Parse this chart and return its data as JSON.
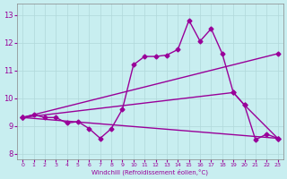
{
  "xlabel": "Windchill (Refroidissement éolien,°C)",
  "background_color": "#c8eef0",
  "grid_color": "#b0d8da",
  "line_color": "#990099",
  "ylim": [
    7.8,
    13.4
  ],
  "xlim": [
    -0.5,
    23.5
  ],
  "yticks": [
    8,
    9,
    10,
    11,
    12,
    13
  ],
  "xticks": [
    0,
    1,
    2,
    3,
    4,
    5,
    6,
    7,
    8,
    9,
    10,
    11,
    12,
    13,
    14,
    15,
    16,
    17,
    18,
    19,
    20,
    21,
    22,
    23
  ],
  "line1_x": [
    0,
    1,
    2,
    3,
    4,
    5,
    6,
    7,
    8,
    9,
    10,
    11,
    12,
    13,
    14,
    15,
    16,
    17,
    18,
    19,
    20,
    21,
    22,
    23
  ],
  "line1_y": [
    9.3,
    9.4,
    9.3,
    9.3,
    9.1,
    9.15,
    8.9,
    8.55,
    8.9,
    9.6,
    11.2,
    11.5,
    11.5,
    11.55,
    11.75,
    12.8,
    12.05,
    12.5,
    11.6,
    10.2,
    9.75,
    8.5,
    8.7,
    8.55
  ],
  "line2_x": [
    0,
    23
  ],
  "line2_y": [
    9.3,
    11.6
  ],
  "line3_x": [
    0,
    23
  ],
  "line3_y": [
    9.3,
    8.55
  ],
  "line4_x": [
    0,
    19,
    20,
    23
  ],
  "line4_y": [
    9.3,
    10.2,
    9.75,
    8.55
  ],
  "markersize": 2.5,
  "linewidth": 1.0
}
